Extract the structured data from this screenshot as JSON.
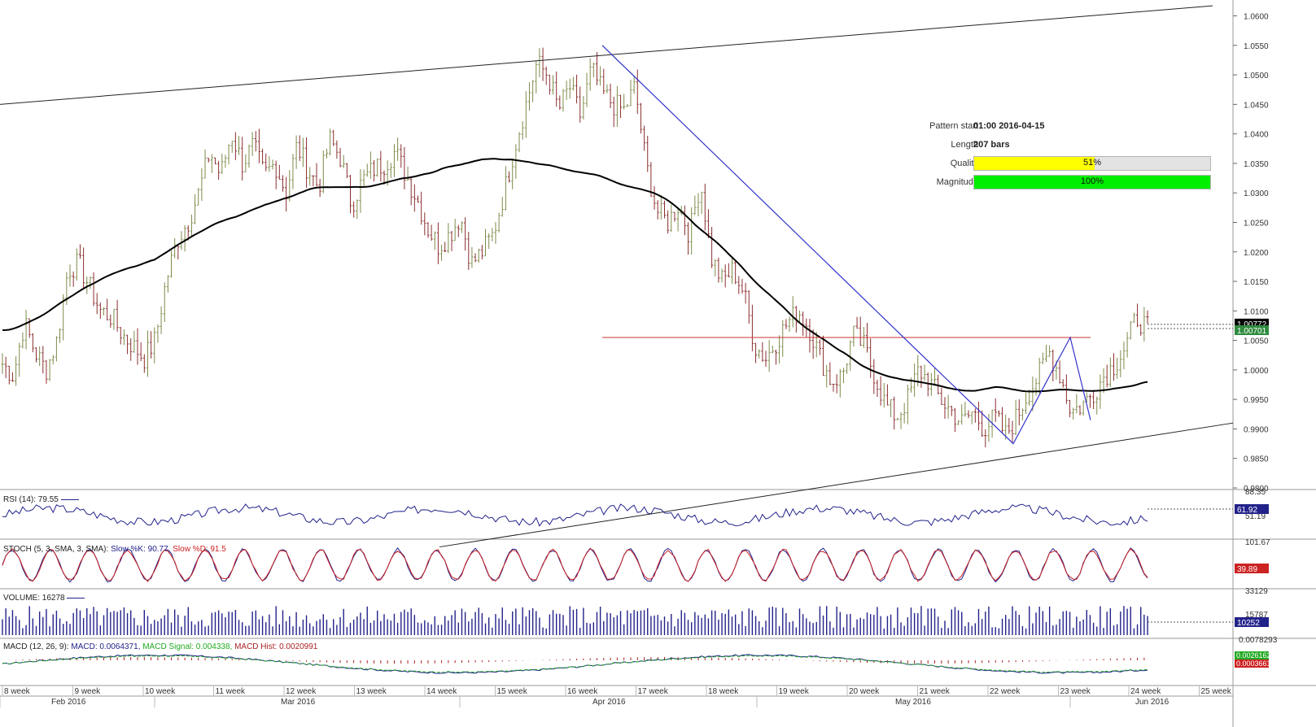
{
  "pattern_info": {
    "pattern_start_label": "Pattern start",
    "pattern_start_value": "01:00 2016-04-15",
    "length_label": "Length",
    "length_value": "207 bars",
    "quality_label": "Quality",
    "quality_value": "51%",
    "quality_fraction": 0.51,
    "magnitude_label": "Magnitude",
    "magnitude_value": "100%",
    "magnitude_fraction": 1.0
  },
  "colors": {
    "quality_bar": "#ffff00",
    "magnitude_bar": "#00ee00",
    "up_candle": "#7d8b4a",
    "down_candle": "#8b2f2f",
    "moving_average": "#000000",
    "pattern_line": "#3333cc",
    "level_line": "#cc3333",
    "rsi_line": "#22228b",
    "stoch_k": "#22228b",
    "stoch_d": "#cc2222",
    "volume_bars": "#22228b",
    "macd_line": "#22228b",
    "macd_signal": "#22aa22",
    "macd_hist": "#aa2222"
  },
  "indicators": {
    "rsi_label": "RSI (14): 79.55",
    "rsi_current": "61.92",
    "stoch_label_black": "STOCH (5, 3, SMA, 3, SMA):",
    "stoch_label_k": "Slow %K: 90.77,",
    "stoch_label_d": "Slow %D: 91.5",
    "stoch_current": "39.89",
    "volume_label": "VOLUME: 16278",
    "volume_current": "10252",
    "macd_label_black": "MACD (12, 26, 9):",
    "macd_label_macd": "MACD: 0.0064371,",
    "macd_label_signal": "MACD Signal: 0.004338,",
    "macd_label_hist": "MACD Hist: 0.0020991",
    "macd_current_signal": "0.0026162",
    "macd_current_hist": "0.0003661"
  },
  "chart_data": {
    "type": "candlestick",
    "y_range": [
      0.98,
      1.062
    ],
    "y_ticks": [
      "1.0600",
      "1.0550",
      "1.0500",
      "1.0450",
      "1.0400",
      "1.0350",
      "1.0300",
      "1.0250",
      "1.0200",
      "1.0150",
      "1.0100",
      "1.0050",
      "1.0000",
      "0.9950",
      "0.9900",
      "0.9850",
      "0.9800"
    ],
    "current_price_label": "1.00701",
    "current_price": 1.00701,
    "ma_price_label": "1.00772",
    "ma_price": 1.00772,
    "rsi_ticks": [
      "88.35",
      "51.19"
    ],
    "stoch_ticks": [
      "101.67",
      "33129"
    ],
    "volume_ticks": [
      "15787"
    ],
    "macd_ticks": [
      "0.0078293"
    ],
    "week_labels": [
      "8 week",
      "9 week",
      "10 week",
      "11 week",
      "12 week",
      "13 week",
      "14 week",
      "15 week",
      "16 week",
      "17 week",
      "18 week",
      "19 week",
      "20 week",
      "21 week",
      "22 week",
      "23 week",
      "24 week",
      "25 week"
    ],
    "month_labels": [
      "Feb 2016",
      "Mar 2016",
      "Apr 2016",
      "May 2016",
      "Jun 2016"
    ],
    "levels": {
      "channel_upper_start": 1.045,
      "channel_upper_end": 1.0617,
      "channel_lower_start": 0.97,
      "channel_lower_end": 0.991,
      "horizontal_level": 1.0055
    },
    "close_path": [
      1.001,
      0.999,
      1.008,
      1.003,
      1.0,
      1.005,
      1.017,
      1.018,
      1.014,
      1.01,
      1.009,
      1.006,
      1.004,
      1.002,
      1.005,
      1.015,
      1.022,
      1.025,
      1.03,
      1.037,
      1.033,
      1.04,
      1.035,
      1.038,
      1.033,
      1.035,
      1.03,
      1.038,
      1.034,
      1.031,
      1.039,
      1.036,
      1.028,
      1.032,
      1.034,
      1.035,
      1.037,
      1.033,
      1.029,
      1.024,
      1.021,
      1.023,
      1.026,
      1.018,
      1.02,
      1.023,
      1.03,
      1.038,
      1.045,
      1.052,
      1.05,
      1.044,
      1.048,
      1.043,
      1.051,
      1.047,
      1.045,
      1.044,
      1.048,
      1.035,
      1.027,
      1.025,
      1.028,
      1.023,
      1.032,
      1.019,
      1.015,
      1.017,
      1.013,
      1.004,
      1.002,
      1.005,
      1.008,
      1.01,
      1.007,
      1.002,
      0.998,
      0.999,
      1.006,
      1.004,
      0.999,
      0.994,
      0.992,
      0.995,
      1.0,
      0.998,
      0.995,
      0.993,
      0.991,
      0.993,
      0.99,
      0.992,
      0.989,
      0.992,
      0.996,
      0.999,
      1.003,
      0.999,
      0.993,
      0.994,
      0.996,
      0.999,
      1.001,
      1.004,
      1.009,
      1.007
    ]
  }
}
